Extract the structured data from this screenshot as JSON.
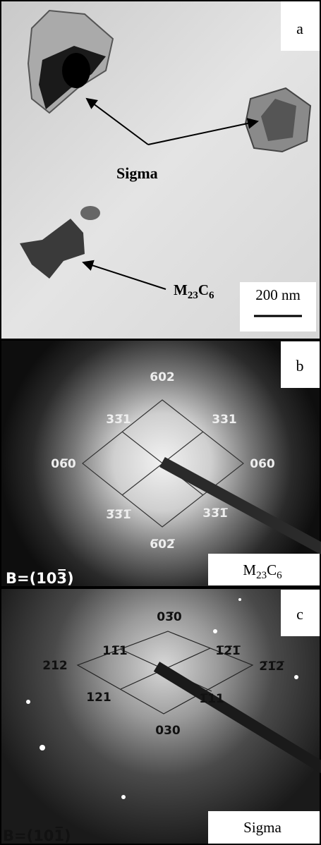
{
  "panel_a": {
    "label": "a",
    "sigma_label": "Sigma",
    "carbide_label": [
      "M",
      "23",
      "C",
      "6"
    ],
    "scale_bar": "200 nm"
  },
  "panel_b": {
    "label": "b",
    "indices": [
      "602",
      "33̅1",
      "331",
      "06̅0",
      "060",
      "3̅3̅1̅",
      "33̅1̅",
      "6̅02̅"
    ],
    "zone_axis": "B=(103̅)",
    "phase": [
      "M",
      "23",
      "C",
      "6"
    ]
  },
  "panel_c": {
    "label": "c",
    "indices": [
      "03̅0",
      "11̅1",
      "1̅2̅1̅",
      "212",
      "2̅1̅2̅",
      "121",
      "1̅11",
      "030"
    ],
    "zone_axis": "B=(101̅)",
    "phase": "Sigma"
  }
}
